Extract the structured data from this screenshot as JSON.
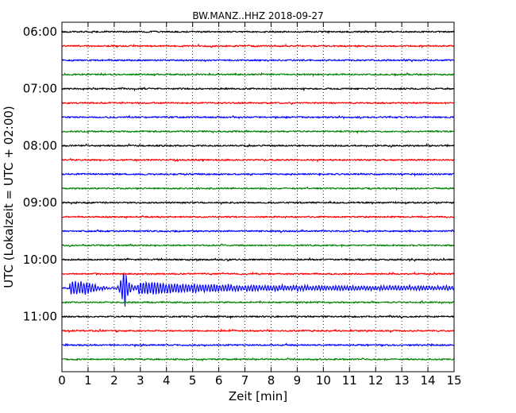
{
  "chart_data": {
    "type": "line",
    "title": "BW.MANZ..HHZ 2018-09-27",
    "xlabel": "Zeit  [min]",
    "ylabel": "UTC (Lokalzeit = UTC + 02:00)",
    "xlim": [
      0,
      15
    ],
    "x_ticks": [
      "0",
      "1",
      "2",
      "3",
      "4",
      "5",
      "6",
      "7",
      "8",
      "9",
      "10",
      "11",
      "12",
      "13",
      "14",
      "15"
    ],
    "y_tick_labels": [
      "06:00",
      "07:00",
      "08:00",
      "09:00",
      "10:00",
      "11:00"
    ],
    "trace_interval_min": 15,
    "trace_count": 24,
    "trace_colors": [
      "#000000",
      "#ff0000",
      "#0000ff",
      "#008000"
    ],
    "grid": "vertical-dotted",
    "event": {
      "trace_index": 18,
      "trace_start": "10:30",
      "onset_min": 0.3,
      "peak_min": 2.4,
      "amplitude_peak": 1.0,
      "coda_end_min": 15
    }
  }
}
